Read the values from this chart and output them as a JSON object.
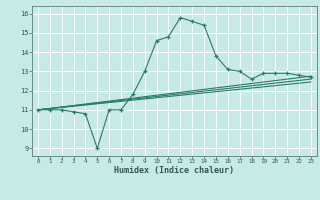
{
  "xlabel": "Humidex (Indice chaleur)",
  "background_color": "#c8eae6",
  "grid_color": "#ffffff",
  "line_color": "#2a7a6a",
  "xlim": [
    -0.5,
    23.5
  ],
  "ylim": [
    8.6,
    16.4
  ],
  "xticks": [
    0,
    1,
    2,
    3,
    4,
    5,
    6,
    7,
    8,
    9,
    10,
    11,
    12,
    13,
    14,
    15,
    16,
    17,
    18,
    19,
    20,
    21,
    22,
    23
  ],
  "yticks": [
    9,
    10,
    11,
    12,
    13,
    14,
    15,
    16
  ],
  "main_x": [
    0,
    1,
    2,
    3,
    4,
    5,
    6,
    7,
    8,
    9,
    10,
    11,
    12,
    13,
    14,
    15,
    16,
    17,
    18,
    19,
    20,
    21,
    22,
    23
  ],
  "main_y": [
    11.0,
    11.0,
    11.0,
    10.9,
    10.8,
    9.0,
    11.0,
    11.0,
    11.8,
    13.0,
    14.6,
    14.8,
    15.8,
    15.6,
    15.4,
    13.8,
    13.1,
    13.0,
    12.6,
    12.9,
    12.9,
    12.9,
    12.8,
    12.7
  ],
  "line2_x": [
    0,
    23
  ],
  "line2_y": [
    11.0,
    12.45
  ],
  "line3_x": [
    0,
    23
  ],
  "line3_y": [
    11.0,
    12.6
  ],
  "line4_x": [
    0,
    23
  ],
  "line4_y": [
    11.0,
    12.75
  ]
}
